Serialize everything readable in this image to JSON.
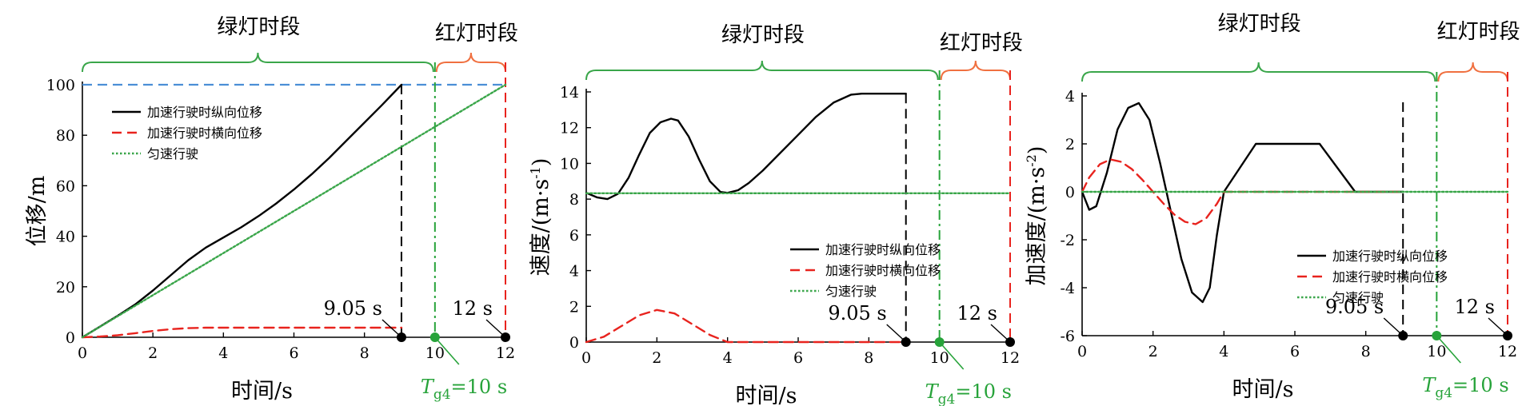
{
  "chart_data": [
    {
      "type": "line",
      "xlabel": "时间/s",
      "ylabel": "位移/m",
      "xlim": [
        0,
        12
      ],
      "ylim": [
        0,
        100
      ],
      "xticks": [
        0,
        2,
        4,
        6,
        8,
        10,
        12
      ],
      "yticks": [
        0,
        20,
        40,
        60,
        80,
        100
      ],
      "segments": [
        {
          "label": "绿灯时段",
          "from": 0,
          "to": 10,
          "color": "#3aa64a"
        },
        {
          "label": "红灯时段",
          "from": 10,
          "to": 12,
          "color": "#f07040"
        }
      ],
      "vlines": [
        {
          "x": 9.05,
          "color": "#000000",
          "style": "dashed"
        },
        {
          "x": 10,
          "color": "#27a33a",
          "style": "dashdot"
        },
        {
          "x": 12,
          "color": "#e8231e",
          "style": "dashed"
        }
      ],
      "hline": {
        "y": 100,
        "color": "#4b8fd6",
        "style": "dashed"
      },
      "markers": [
        {
          "x": 9.05,
          "label": "9.05 s",
          "color": "#000000"
        },
        {
          "x": 10,
          "label_main": "T",
          "label_sub": "g4",
          "label_rest": "=10 s",
          "color": "#27a33a"
        },
        {
          "x": 12,
          "label": "12 s",
          "color": "#000000"
        }
      ],
      "legend_position": "upper-left",
      "series": [
        {
          "name": "加速行驶时纵向位移",
          "color": "#000000",
          "dash": "solid",
          "x": [
            0,
            0.5,
            1,
            1.5,
            2,
            2.5,
            3,
            3.5,
            4,
            4.5,
            5,
            5.5,
            6,
            6.5,
            7,
            7.5,
            8,
            8.5,
            9.05
          ],
          "y": [
            0,
            4.2,
            8.5,
            13,
            18.5,
            24.5,
            30.5,
            35.5,
            39.5,
            43.5,
            48,
            53,
            58.5,
            64.5,
            71,
            78,
            85,
            92,
            100
          ]
        },
        {
          "name": "加速行驶时横向位移",
          "color": "#e8231e",
          "dash": "dashed",
          "x": [
            0,
            0.5,
            1,
            1.5,
            2,
            2.5,
            3,
            3.5,
            4,
            6,
            8,
            9.05
          ],
          "y": [
            0,
            0.3,
            0.8,
            1.6,
            2.5,
            3.2,
            3.6,
            3.8,
            3.8,
            3.8,
            3.8,
            3.8
          ]
        },
        {
          "name": "匀速行驶",
          "color": "#3aa64a",
          "dash": "dotted",
          "x": [
            0,
            12
          ],
          "y": [
            0,
            100
          ]
        }
      ]
    },
    {
      "type": "line",
      "xlabel": "时间/s",
      "ylabel_main": "速度/(m·s",
      "ylabel_sup": "-1",
      "ylabel_tail": ")",
      "xlim": [
        0,
        12
      ],
      "ylim": [
        0,
        14
      ],
      "xticks": [
        0,
        2,
        4,
        6,
        8,
        10,
        12
      ],
      "yticks": [
        0,
        2,
        4,
        6,
        8,
        10,
        12,
        14
      ],
      "segments": [
        {
          "label": "绿灯时段",
          "from": 0,
          "to": 10,
          "color": "#3aa64a"
        },
        {
          "label": "红灯时段",
          "from": 10,
          "to": 12,
          "color": "#f07040"
        }
      ],
      "vlines": [
        {
          "x": 9.05,
          "color": "#000000",
          "style": "dashed"
        },
        {
          "x": 10,
          "color": "#27a33a",
          "style": "dashdot"
        },
        {
          "x": 12,
          "color": "#e8231e",
          "style": "dashed"
        }
      ],
      "markers": [
        {
          "x": 9.05,
          "label": "9.05 s",
          "color": "#000000"
        },
        {
          "x": 10,
          "label_main": "T",
          "label_sub": "g4",
          "label_rest": "=10 s",
          "color": "#27a33a"
        },
        {
          "x": 12,
          "label": "12 s",
          "color": "#000000"
        }
      ],
      "legend_position": "center-right",
      "series": [
        {
          "name": "加速行驶时纵向位移",
          "color": "#000000",
          "dash": "solid",
          "x": [
            0,
            0.3,
            0.6,
            0.9,
            1.2,
            1.5,
            1.8,
            2.1,
            2.4,
            2.6,
            2.9,
            3.2,
            3.5,
            3.8,
            4.0,
            4.3,
            4.6,
            5,
            5.5,
            6,
            6.5,
            7,
            7.5,
            7.8,
            8.2,
            9.05
          ],
          "y": [
            8.35,
            8.1,
            8.0,
            8.3,
            9.2,
            10.5,
            11.7,
            12.3,
            12.5,
            12.4,
            11.5,
            10.2,
            9.0,
            8.4,
            8.35,
            8.5,
            8.9,
            9.6,
            10.6,
            11.6,
            12.6,
            13.4,
            13.85,
            13.9,
            13.9,
            13.9
          ]
        },
        {
          "name": "加速行驶时横向位移",
          "color": "#e8231e",
          "dash": "dashed",
          "x": [
            0,
            0.5,
            1,
            1.5,
            2,
            2.5,
            3,
            3.5,
            4,
            6,
            8,
            9.05
          ],
          "y": [
            0,
            0.3,
            0.9,
            1.5,
            1.8,
            1.6,
            1.0,
            0.4,
            0,
            0,
            0,
            0
          ]
        },
        {
          "name": "匀速行驶",
          "color": "#3aa64a",
          "dash": "dotted",
          "x": [
            0,
            12
          ],
          "y": [
            8.33,
            8.33
          ]
        }
      ]
    },
    {
      "type": "line",
      "xlabel": "时间/s",
      "ylabel_main": "加速度/(m·s",
      "ylabel_sup": "-2",
      "ylabel_tail": ")",
      "xlim": [
        0,
        12
      ],
      "ylim": [
        -6,
        4
      ],
      "xticks": [
        0,
        2,
        4,
        6,
        8,
        10,
        12
      ],
      "yticks": [
        -6,
        -4,
        -2,
        0,
        2,
        4
      ],
      "segments": [
        {
          "label": "绿灯时段",
          "from": 0,
          "to": 10,
          "color": "#3aa64a"
        },
        {
          "label": "红灯时段",
          "from": 10,
          "to": 12,
          "color": "#f07040"
        }
      ],
      "vlines": [
        {
          "x": 9.05,
          "color": "#000000",
          "style": "dashed"
        },
        {
          "x": 10,
          "color": "#27a33a",
          "style": "dashdot"
        },
        {
          "x": 12,
          "color": "#e8231e",
          "style": "dashed"
        }
      ],
      "markers": [
        {
          "x": 9.05,
          "label": "9.05 s",
          "color": "#000000"
        },
        {
          "x": 10,
          "label_main": "T",
          "label_sub": "g4",
          "label_rest": "=10 s",
          "color": "#27a33a"
        },
        {
          "x": 12,
          "label": "12 s",
          "color": "#000000"
        }
      ],
      "legend_position": "lower-right",
      "series": [
        {
          "name": "加速行驶时纵向位移",
          "color": "#000000",
          "dash": "solid",
          "x": [
            0,
            0.2,
            0.4,
            0.7,
            1.0,
            1.3,
            1.6,
            1.9,
            2.2,
            2.5,
            2.8,
            3.1,
            3.4,
            3.6,
            3.8,
            4.0,
            4.9,
            6.7,
            7.7,
            9.05
          ],
          "y": [
            0,
            -0.75,
            -0.6,
            0.8,
            2.6,
            3.5,
            3.7,
            3.0,
            1.2,
            -0.8,
            -2.8,
            -4.2,
            -4.6,
            -4.0,
            -1.8,
            0,
            2.0,
            2.0,
            0,
            0
          ]
        },
        {
          "name": "加速行驶时横向位移",
          "color": "#e8231e",
          "dash": "dashed",
          "x": [
            0,
            0.2,
            0.5,
            0.8,
            1.1,
            1.4,
            1.7,
            2.0,
            2.3,
            2.6,
            2.9,
            3.2,
            3.5,
            3.8,
            4.0,
            9.05
          ],
          "y": [
            0,
            0.6,
            1.15,
            1.35,
            1.25,
            0.95,
            0.5,
            0,
            -0.5,
            -0.95,
            -1.25,
            -1.35,
            -1.1,
            -0.5,
            0,
            0
          ]
        },
        {
          "name": "匀速行驶",
          "color": "#3aa64a",
          "dash": "dotted",
          "x": [
            0,
            12
          ],
          "y": [
            0,
            0
          ]
        }
      ]
    }
  ]
}
